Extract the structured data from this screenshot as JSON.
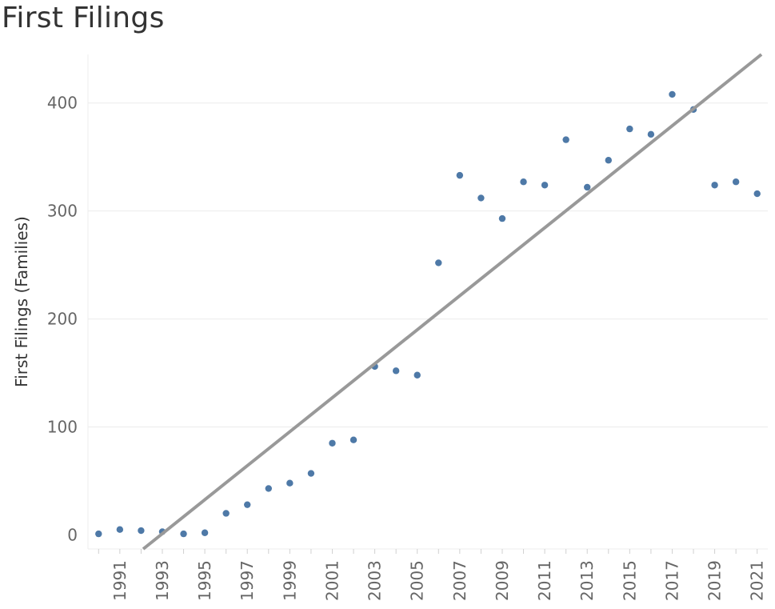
{
  "chart_data": {
    "type": "scatter",
    "title": "First Filings",
    "xlabel": "",
    "ylabel": "First Filings (Families)",
    "x_tick_labels": [
      "1991",
      "1993",
      "1995",
      "1997",
      "1999",
      "2001",
      "2003",
      "2005",
      "2007",
      "2009",
      "2011",
      "2013",
      "2015",
      "2017",
      "2019",
      "2021"
    ],
    "y_ticks": [
      0,
      100,
      200,
      300,
      400
    ],
    "ylim": [
      -13,
      445
    ],
    "xlim": [
      1989.5,
      2021.5
    ],
    "grid": "horizontal",
    "legend": "none",
    "marker_color": "#4e79a7",
    "trend_color": "#999999",
    "series": [
      {
        "points": [
          {
            "x": 1990,
            "y": 1
          },
          {
            "x": 1991,
            "y": 5
          },
          {
            "x": 1992,
            "y": 4
          },
          {
            "x": 1993,
            "y": 3
          },
          {
            "x": 1994,
            "y": 1
          },
          {
            "x": 1995,
            "y": 2
          },
          {
            "x": 1996,
            "y": 20
          },
          {
            "x": 1997,
            "y": 28
          },
          {
            "x": 1998,
            "y": 43
          },
          {
            "x": 1999,
            "y": 48
          },
          {
            "x": 2000,
            "y": 57
          },
          {
            "x": 2001,
            "y": 85
          },
          {
            "x": 2002,
            "y": 88
          },
          {
            "x": 2003,
            "y": 156
          },
          {
            "x": 2004,
            "y": 152
          },
          {
            "x": 2005,
            "y": 148
          },
          {
            "x": 2006,
            "y": 252
          },
          {
            "x": 2007,
            "y": 333
          },
          {
            "x": 2008,
            "y": 312
          },
          {
            "x": 2009,
            "y": 293
          },
          {
            "x": 2010,
            "y": 327
          },
          {
            "x": 2011,
            "y": 324
          },
          {
            "x": 2012,
            "y": 366
          },
          {
            "x": 2013,
            "y": 322
          },
          {
            "x": 2014,
            "y": 347
          },
          {
            "x": 2015,
            "y": 376
          },
          {
            "x": 2016,
            "y": 371
          },
          {
            "x": 2017,
            "y": 408
          },
          {
            "x": 2018,
            "y": 394
          },
          {
            "x": 2019,
            "y": 324
          },
          {
            "x": 2020,
            "y": 327
          },
          {
            "x": 2021,
            "y": 316
          }
        ]
      }
    ],
    "trend_line": {
      "x": [
        1992.1,
        2021.2
      ],
      "y": [
        -13,
        445
      ]
    }
  }
}
